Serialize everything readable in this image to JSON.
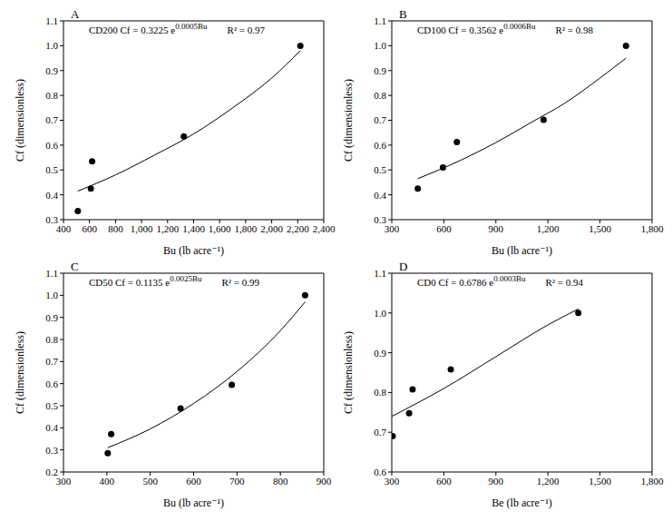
{
  "chart_data": [
    {
      "type": "scatter",
      "title": "A",
      "annotations": [
        {
          "text": "CD200 Cf = 0.3225 e",
          "superscript": "0.0005Bu"
        },
        {
          "text": "R² = 0.97"
        }
      ],
      "x_label": "Bu (lb acre⁻¹)",
      "y_label": "Cf (dimensionless)",
      "xlim": [
        400,
        2400
      ],
      "xticks": [
        400,
        600,
        800,
        {
          "value": 1000,
          "label": "1,000"
        },
        {
          "value": 1200,
          "label": "1,200"
        },
        {
          "value": 1400,
          "label": "1,400"
        },
        {
          "value": 1600,
          "label": "1,600"
        },
        {
          "value": 1800,
          "label": "1,800"
        },
        {
          "value": 2000,
          "label": "2,000"
        },
        {
          "value": 2200,
          "label": "2,200"
        },
        {
          "value": 2400,
          "label": "2,400"
        }
      ],
      "ylim": [
        0.3,
        1.1
      ],
      "yticks": [
        0.3,
        0.4,
        0.5,
        0.6,
        0.7,
        0.8,
        0.9,
        {
          "value": 1,
          "label": "1.0"
        },
        1.1
      ],
      "series": [
        {
          "type": "scatter",
          "marker": "circle",
          "color": "#000000",
          "x": [
            510,
            610,
            620,
            1325,
            2220
          ],
          "values": [
            0.335,
            0.425,
            0.535,
            0.635,
            1.0
          ]
        },
        {
          "type": "line",
          "line_style": "solid",
          "color": "#000000",
          "x": [
            510,
            800,
            1100,
            1400,
            1700,
            2000,
            2220
          ],
          "values": [
            0.415,
            0.48,
            0.56,
            0.645,
            0.75,
            0.87,
            0.98
          ]
        }
      ]
    },
    {
      "type": "scatter",
      "title": "B",
      "annotations": [
        {
          "text": "CD100 Cf = 0.3562 e",
          "superscript": "0.0006Bu"
        },
        {
          "text": "R² = 0.98"
        }
      ],
      "x_label": "Bu (lb acre⁻¹)",
      "y_label": "Cf (dimensionless)",
      "xlim": [
        300,
        1800
      ],
      "xticks": [
        300,
        600,
        900,
        {
          "value": 1200,
          "label": "1,200"
        },
        {
          "value": 1500,
          "label": "1,500"
        },
        {
          "value": 1800,
          "label": "1,800"
        }
      ],
      "ylim": [
        0.3,
        1.1
      ],
      "yticks": [
        0.3,
        0.4,
        0.5,
        0.6,
        0.7,
        0.8,
        0.9,
        {
          "value": 1,
          "label": "1.0"
        },
        1.1
      ],
      "series": [
        {
          "type": "scatter",
          "marker": "circle",
          "color": "#000000",
          "x": [
            450,
            595,
            675,
            1175,
            1650
          ],
          "values": [
            0.425,
            0.51,
            0.612,
            0.702,
            1.0
          ]
        },
        {
          "type": "line",
          "line_style": "solid",
          "color": "#000000",
          "x": [
            450,
            700,
            900,
            1100,
            1300,
            1500,
            1650
          ],
          "values": [
            0.465,
            0.54,
            0.61,
            0.69,
            0.77,
            0.87,
            0.95
          ]
        }
      ]
    },
    {
      "type": "scatter",
      "title": "C",
      "annotations": [
        {
          "text": "CD50 Cf = 0.1135 e",
          "superscript": "0.0025Bu"
        },
        {
          "text": "R² = 0.99"
        }
      ],
      "x_label": "Bu (lb acre⁻¹)",
      "y_label": "Cf (dimensionless)",
      "xlim": [
        300,
        900
      ],
      "xticks": [
        300,
        400,
        500,
        600,
        700,
        800,
        900
      ],
      "ylim": [
        0.2,
        1.1
      ],
      "yticks": [
        0.2,
        0.3,
        0.4,
        0.5,
        0.6,
        0.7,
        0.8,
        0.9,
        {
          "value": 1,
          "label": "1.0"
        },
        1.1
      ],
      "series": [
        {
          "type": "scatter",
          "marker": "circle",
          "color": "#000000",
          "x": [
            402,
            410,
            570,
            688,
            857
          ],
          "values": [
            0.285,
            0.372,
            0.488,
            0.595,
            1.0
          ]
        },
        {
          "type": "line",
          "line_style": "solid",
          "color": "#000000",
          "x": [
            402,
            500,
            600,
            700,
            800,
            857
          ],
          "values": [
            0.31,
            0.395,
            0.51,
            0.655,
            0.84,
            0.97
          ]
        }
      ]
    },
    {
      "type": "scatter",
      "title": "D",
      "annotations": [
        {
          "text": "CD0 Cf = 0.6786 e",
          "superscript": "0.0003Bu"
        },
        {
          "text": "R² = 0.94"
        }
      ],
      "x_label": "Be (lb acre⁻¹)",
      "y_label": "Cf (dimensionless)",
      "xlim": [
        300,
        1800
      ],
      "xticks": [
        300,
        600,
        900,
        {
          "value": 1200,
          "label": "1,200"
        },
        {
          "value": 1500,
          "label": "1,500"
        },
        {
          "value": 1800,
          "label": "1,800"
        }
      ],
      "ylim": [
        0.6,
        1.1
      ],
      "yticks": [
        0.6,
        0.7,
        0.8,
        0.9,
        {
          "value": 1,
          "label": "1.0"
        },
        1.1
      ],
      "series": [
        {
          "type": "scatter",
          "marker": "circle",
          "color": "#000000",
          "x": [
            305,
            400,
            420,
            640,
            1375
          ],
          "values": [
            0.69,
            0.748,
            0.808,
            0.858,
            1.0
          ]
        },
        {
          "type": "line",
          "line_style": "solid",
          "color": "#000000",
          "x": [
            300,
            600,
            900,
            1200,
            1375
          ],
          "values": [
            0.74,
            0.81,
            0.89,
            0.97,
            1.01
          ]
        }
      ]
    }
  ]
}
